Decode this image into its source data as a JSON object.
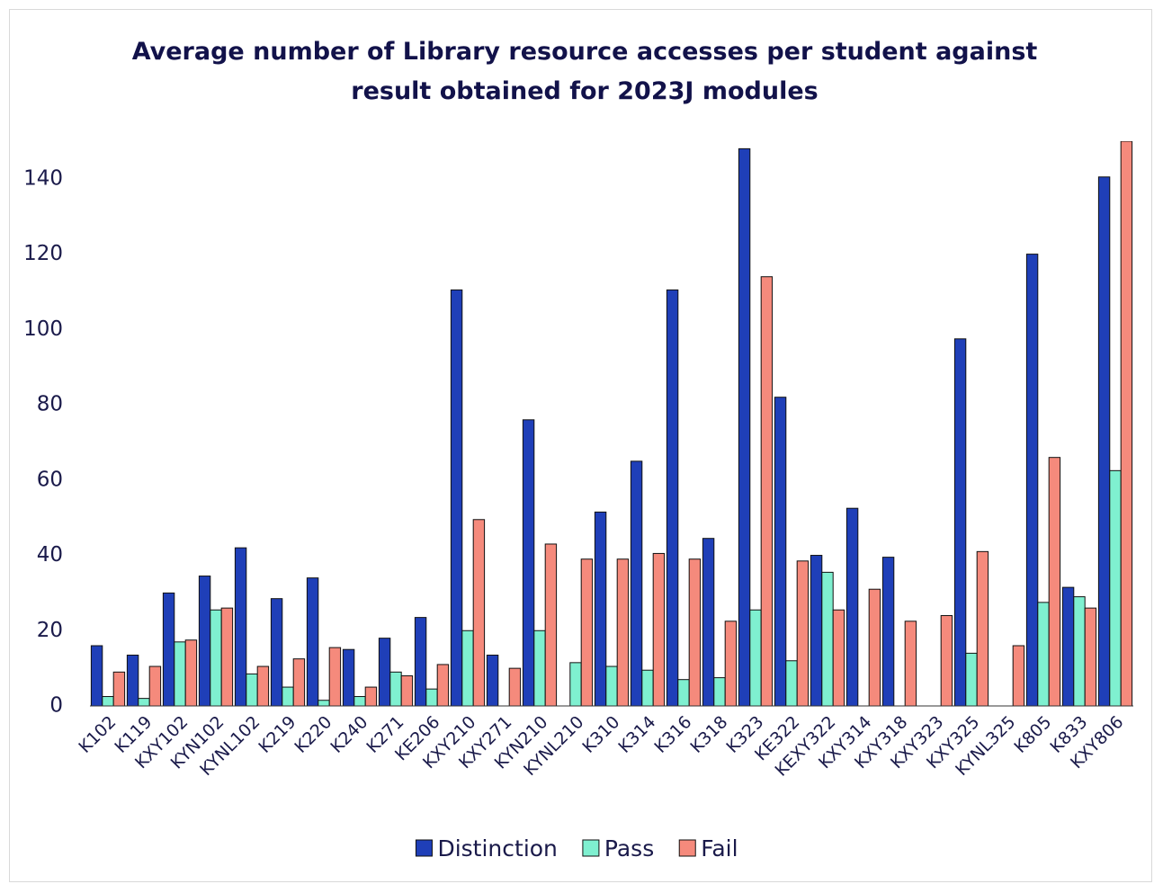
{
  "chart_data": {
    "type": "bar",
    "title": "Average number of Library resource accesses per student against result obtained for 2023J modules",
    "categories": [
      "K102",
      "K119",
      "KXY102",
      "KYN102",
      "KYNL102",
      "K219",
      "K220",
      "K240",
      "K271",
      "KE206",
      "KXY210",
      "KXY271",
      "KYN210",
      "KYNL210",
      "K310",
      "K314",
      "K316",
      "K318",
      "K323",
      "KE322",
      "KEXY322",
      "KXY314",
      "KXY318",
      "KXY323",
      "KXY325",
      "KYNL325",
      "K805",
      "K833",
      "KXY806"
    ],
    "series": [
      {
        "name": "Distinction",
        "color": "#1f3fb8",
        "values": [
          16,
          13.5,
          30,
          34.5,
          42,
          28.5,
          34,
          15,
          18,
          23.5,
          110.5,
          13.5,
          76,
          null,
          51.5,
          65,
          110.5,
          44.5,
          148,
          82,
          40,
          52.5,
          39.5,
          null,
          97.5,
          null,
          120,
          31.5,
          140.5
        ]
      },
      {
        "name": "Pass",
        "color": "#7ff0d0",
        "values": [
          2.5,
          2,
          17,
          25.5,
          8.5,
          5,
          1.5,
          2.5,
          9,
          4.5,
          20,
          null,
          20,
          11.5,
          10.5,
          9.5,
          7,
          7.5,
          25.5,
          12,
          35.5,
          null,
          null,
          null,
          14,
          null,
          27.5,
          29,
          62.5
        ]
      },
      {
        "name": "Fail",
        "color": "#f58a7c",
        "values": [
          9,
          10.5,
          17.5,
          26,
          10.5,
          12.5,
          15.5,
          5,
          8,
          11,
          49.5,
          10,
          43,
          39,
          39,
          40.5,
          39,
          22.5,
          114,
          38.5,
          25.5,
          31,
          22.5,
          24,
          41,
          16,
          66,
          26,
          150
        ]
      }
    ],
    "ylim": [
      0,
      150
    ],
    "yticks": [
      0,
      20,
      40,
      60,
      80,
      100,
      120,
      140
    ],
    "grid": false
  }
}
